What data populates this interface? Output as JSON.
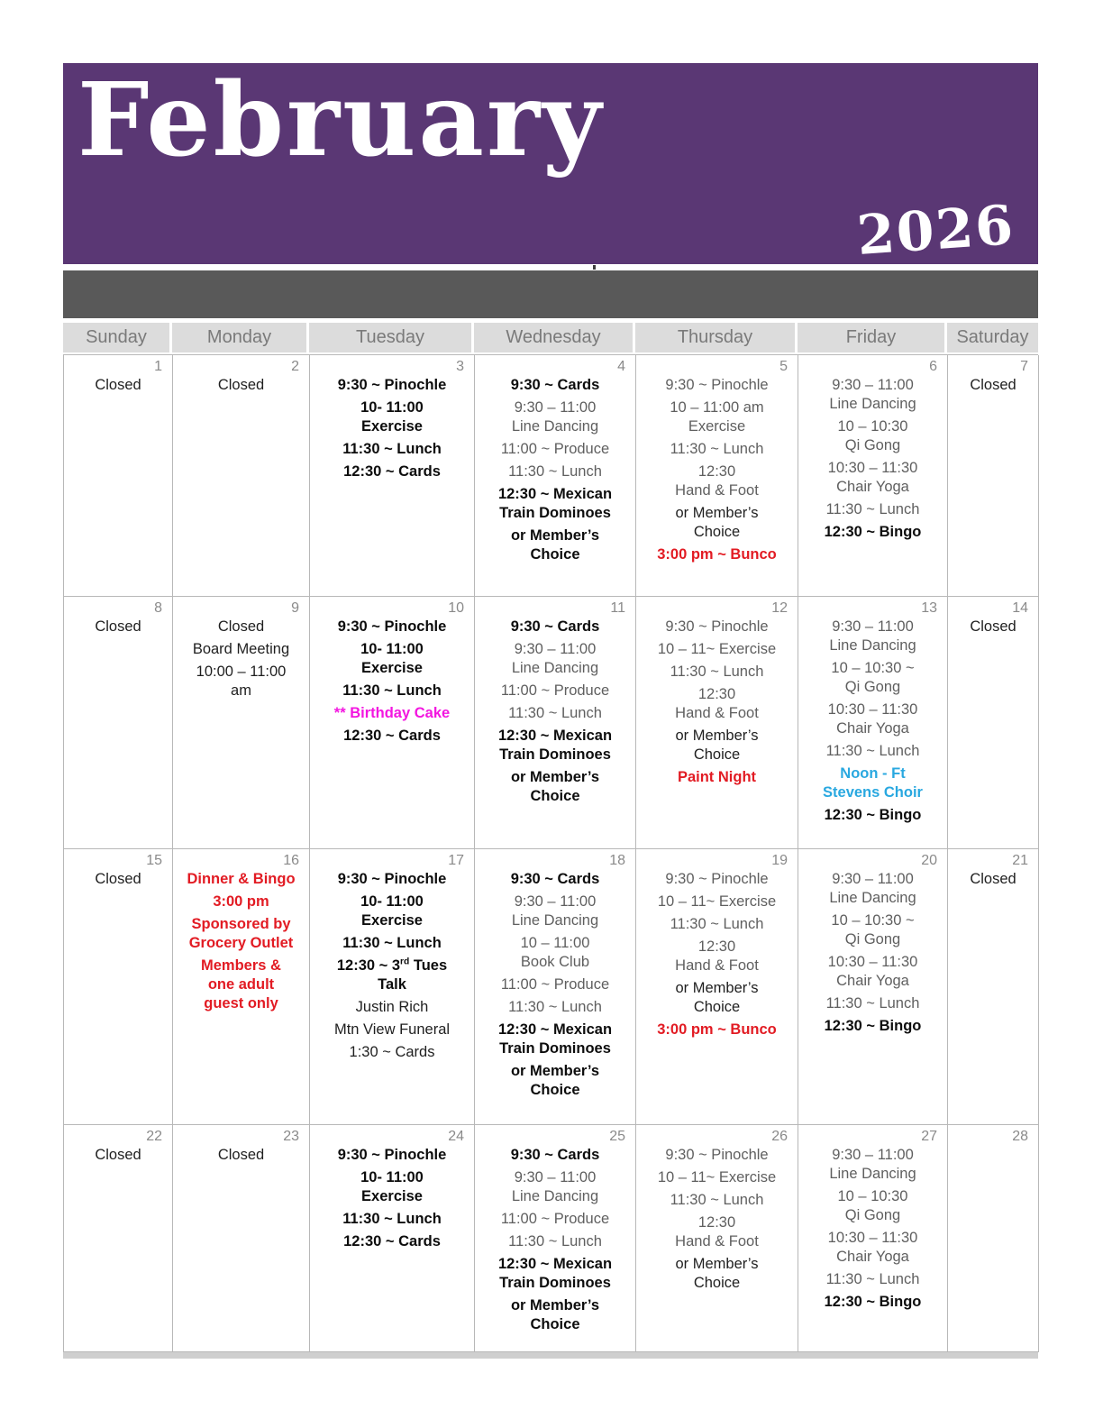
{
  "header": {
    "month": "February",
    "year": "2026"
  },
  "weekday_headers": [
    "Sunday",
    "Monday",
    "Tuesday",
    "Wednesday",
    "Thursday",
    "Friday",
    "Saturday"
  ],
  "colors": {
    "purple": "#5a3774",
    "bar_gray": "#595959",
    "red": "#e21b23",
    "magenta": "#f316e0",
    "blue": "#29a8e0",
    "graytext": "#5f5f5f"
  },
  "calendar": {
    "weeks": [
      [
        {
          "day": "1",
          "events": [
            {
              "style": "plain",
              "lines": [
                "Closed"
              ]
            }
          ]
        },
        {
          "day": "2",
          "events": [
            {
              "style": "plain",
              "lines": [
                "Closed"
              ]
            }
          ]
        },
        {
          "day": "3",
          "events": [
            {
              "style": "bold",
              "lines": [
                "9:30 ~ Pinochle"
              ]
            },
            {
              "style": "bold",
              "lines": [
                "10- 11:00",
                "Exercise"
              ]
            },
            {
              "style": "bold",
              "lines": [
                "11:30 ~ Lunch"
              ]
            },
            {
              "style": "bold",
              "lines": [
                "12:30 ~ Cards"
              ]
            }
          ]
        },
        {
          "day": "4",
          "events": [
            {
              "style": "bold",
              "lines": [
                "9:30 ~ Cards"
              ]
            },
            {
              "style": "gray",
              "lines": [
                "9:30 – 11:00",
                "Line Dancing"
              ]
            },
            {
              "style": "gray",
              "lines": [
                "11:00 ~ Produce"
              ]
            },
            {
              "style": "gray",
              "lines": [
                "11:30 ~ Lunch"
              ]
            },
            {
              "style": "bold",
              "lines": [
                "12:30 ~ Mexican",
                "Train Dominoes"
              ]
            },
            {
              "style": "bold",
              "lines": [
                "or Member’s",
                "Choice"
              ]
            }
          ]
        },
        {
          "day": "5",
          "events": [
            {
              "style": "gray",
              "lines": [
                "9:30 ~ Pinochle"
              ]
            },
            {
              "style": "gray",
              "lines": [
                "10 – 11:00 am",
                "Exercise"
              ]
            },
            {
              "style": "gray",
              "lines": [
                "11:30 ~ Lunch"
              ]
            },
            {
              "style": "gray",
              "lines": [
                "12:30",
                "Hand & Foot"
              ]
            },
            {
              "style": "plain",
              "lines": [
                "or Member’s",
                "Choice"
              ]
            },
            {
              "style": "red",
              "lines": [
                "3:00 pm ~ Bunco"
              ]
            }
          ]
        },
        {
          "day": "6",
          "events": [
            {
              "style": "gray",
              "lines": [
                "9:30 – 11:00",
                "Line Dancing"
              ]
            },
            {
              "style": "gray",
              "lines": [
                "10 – 10:30",
                "Qi Gong"
              ]
            },
            {
              "style": "gray",
              "lines": [
                "10:30 – 11:30",
                "Chair Yoga"
              ]
            },
            {
              "style": "gray",
              "lines": [
                "11:30 ~ Lunch"
              ]
            },
            {
              "style": "bold",
              "lines": [
                "12:30 ~ Bingo"
              ]
            }
          ]
        },
        {
          "day": "7",
          "events": [
            {
              "style": "plain",
              "lines": [
                "Closed"
              ]
            }
          ]
        }
      ],
      [
        {
          "day": "8",
          "events": [
            {
              "style": "plain",
              "lines": [
                "Closed"
              ]
            }
          ]
        },
        {
          "day": "9",
          "events": [
            {
              "style": "plain",
              "lines": [
                "Closed"
              ]
            },
            {
              "style": "plain",
              "lines": [
                "Board Meeting"
              ]
            },
            {
              "style": "plain",
              "lines": [
                "10:00 – 11:00",
                "am"
              ]
            }
          ]
        },
        {
          "day": "10",
          "events": [
            {
              "style": "bold",
              "lines": [
                "9:30 ~ Pinochle"
              ]
            },
            {
              "style": "bold",
              "lines": [
                "10- 11:00",
                "Exercise"
              ]
            },
            {
              "style": "bold",
              "lines": [
                "11:30 ~ Lunch"
              ]
            },
            {
              "style": "magenta",
              "lines": [
                "** Birthday Cake"
              ]
            },
            {
              "style": "bold",
              "lines": [
                "12:30 ~ Cards"
              ]
            }
          ]
        },
        {
          "day": "11",
          "events": [
            {
              "style": "bold",
              "lines": [
                "9:30 ~ Cards"
              ]
            },
            {
              "style": "gray",
              "lines": [
                "9:30 – 11:00",
                "Line Dancing"
              ]
            },
            {
              "style": "gray",
              "lines": [
                "11:00 ~ Produce"
              ]
            },
            {
              "style": "gray",
              "lines": [
                "11:30 ~ Lunch"
              ]
            },
            {
              "style": "bold",
              "lines": [
                "12:30 ~ Mexican",
                "Train Dominoes"
              ]
            },
            {
              "style": "bold",
              "lines": [
                "or Member’s",
                "Choice"
              ]
            }
          ]
        },
        {
          "day": "12",
          "events": [
            {
              "style": "gray",
              "lines": [
                "9:30 ~ Pinochle"
              ]
            },
            {
              "style": "gray",
              "lines": [
                "10 – 11~ Exercise"
              ]
            },
            {
              "style": "gray",
              "lines": [
                "11:30 ~ Lunch"
              ]
            },
            {
              "style": "gray",
              "lines": [
                "12:30",
                "Hand & Foot"
              ]
            },
            {
              "style": "plain",
              "lines": [
                "or Member’s",
                "Choice"
              ]
            },
            {
              "style": "red",
              "lines": [
                "Paint Night"
              ]
            }
          ]
        },
        {
          "day": "13",
          "events": [
            {
              "style": "gray",
              "lines": [
                "9:30 – 11:00",
                "Line Dancing"
              ]
            },
            {
              "style": "gray",
              "lines": [
                "10 – 10:30 ~",
                "Qi Gong"
              ]
            },
            {
              "style": "gray",
              "lines": [
                "10:30 – 11:30",
                "Chair Yoga"
              ]
            },
            {
              "style": "gray",
              "lines": [
                "11:30 ~ Lunch"
              ]
            },
            {
              "style": "blue",
              "lines": [
                "Noon - Ft",
                "Stevens Choir"
              ]
            },
            {
              "style": "bold",
              "lines": [
                "12:30 ~ Bingo"
              ]
            }
          ]
        },
        {
          "day": "14",
          "events": [
            {
              "style": "plain",
              "lines": [
                "Closed"
              ]
            }
          ]
        }
      ],
      [
        {
          "day": "15",
          "events": [
            {
              "style": "plain",
              "lines": [
                "Closed"
              ]
            }
          ]
        },
        {
          "day": "16",
          "events": [
            {
              "style": "red",
              "lines": [
                "Dinner & Bingo"
              ]
            },
            {
              "style": "red",
              "lines": [
                "3:00 pm"
              ]
            },
            {
              "style": "red",
              "lines": [
                "Sponsored by",
                "Grocery Outlet"
              ]
            },
            {
              "style": "red",
              "lines": [
                "Members &",
                "one adult",
                "guest only"
              ]
            }
          ]
        },
        {
          "day": "17",
          "events": [
            {
              "style": "bold",
              "lines": [
                "9:30 ~ Pinochle"
              ]
            },
            {
              "style": "bold",
              "lines": [
                "10- 11:00",
                "Exercise"
              ]
            },
            {
              "style": "bold",
              "lines": [
                "11:30 ~ Lunch"
              ]
            },
            {
              "style": "bold",
              "lines": [
                "12:30 ~ 3{rd} Tues",
                "Talk"
              ]
            },
            {
              "style": "plain",
              "lines": [
                "Justin Rich"
              ]
            },
            {
              "style": "plain",
              "lines": [
                "Mtn View Funeral"
              ]
            },
            {
              "style": "plain",
              "lines": [
                "1:30 ~ Cards"
              ]
            }
          ]
        },
        {
          "day": "18",
          "events": [
            {
              "style": "bold",
              "lines": [
                "9:30 ~ Cards"
              ]
            },
            {
              "style": "gray",
              "lines": [
                "9:30 – 11:00",
                "Line Dancing"
              ]
            },
            {
              "style": "gray",
              "lines": [
                "10 – 11:00",
                "Book Club"
              ]
            },
            {
              "style": "gray",
              "lines": [
                "11:00 ~ Produce"
              ]
            },
            {
              "style": "gray",
              "lines": [
                "11:30 ~ Lunch"
              ]
            },
            {
              "style": "bold",
              "lines": [
                "12:30 ~ Mexican",
                "Train Dominoes"
              ]
            },
            {
              "style": "bold",
              "lines": [
                "or Member’s",
                "Choice"
              ]
            }
          ]
        },
        {
          "day": "19",
          "events": [
            {
              "style": "gray",
              "lines": [
                "9:30 ~ Pinochle"
              ]
            },
            {
              "style": "gray",
              "lines": [
                "10 – 11~ Exercise"
              ]
            },
            {
              "style": "gray",
              "lines": [
                "11:30 ~ Lunch"
              ]
            },
            {
              "style": "gray",
              "lines": [
                "12:30",
                "Hand & Foot"
              ]
            },
            {
              "style": "plain",
              "lines": [
                "or Member’s",
                "Choice"
              ]
            },
            {
              "style": "red",
              "lines": [
                "3:00 pm ~ Bunco"
              ]
            }
          ]
        },
        {
          "day": "20",
          "events": [
            {
              "style": "gray",
              "lines": [
                "9:30 – 11:00",
                "Line Dancing"
              ]
            },
            {
              "style": "gray",
              "lines": [
                "10 – 10:30 ~",
                "Qi Gong"
              ]
            },
            {
              "style": "gray",
              "lines": [
                "10:30 – 11:30",
                "Chair Yoga"
              ]
            },
            {
              "style": "gray",
              "lines": [
                "11:30 ~ Lunch"
              ]
            },
            {
              "style": "bold",
              "lines": [
                "12:30 ~ Bingo"
              ]
            }
          ]
        },
        {
          "day": "21",
          "events": [
            {
              "style": "plain",
              "lines": [
                "Closed"
              ]
            }
          ]
        }
      ],
      [
        {
          "day": "22",
          "events": [
            {
              "style": "plain",
              "lines": [
                "Closed"
              ]
            }
          ]
        },
        {
          "day": "23",
          "events": [
            {
              "style": "plain",
              "lines": [
                "Closed"
              ]
            }
          ]
        },
        {
          "day": "24",
          "events": [
            {
              "style": "bold",
              "lines": [
                "9:30 ~ Pinochle"
              ]
            },
            {
              "style": "bold",
              "lines": [
                "10- 11:00",
                "Exercise"
              ]
            },
            {
              "style": "bold",
              "lines": [
                "11:30 ~ Lunch"
              ]
            },
            {
              "style": "bold",
              "lines": [
                "12:30 ~ Cards"
              ]
            }
          ]
        },
        {
          "day": "25",
          "events": [
            {
              "style": "bold",
              "lines": [
                "9:30 ~ Cards"
              ]
            },
            {
              "style": "gray",
              "lines": [
                "9:30 – 11:00",
                "Line Dancing"
              ]
            },
            {
              "style": "gray",
              "lines": [
                "11:00 ~ Produce"
              ]
            },
            {
              "style": "gray",
              "lines": [
                "11:30 ~ Lunch"
              ]
            },
            {
              "style": "bold",
              "lines": [
                "12:30 ~ Mexican",
                "Train Dominoes"
              ]
            },
            {
              "style": "bold",
              "lines": [
                "or Member’s",
                "Choice"
              ]
            }
          ]
        },
        {
          "day": "26",
          "events": [
            {
              "style": "gray",
              "lines": [
                "9:30 ~ Pinochle"
              ]
            },
            {
              "style": "gray",
              "lines": [
                "10 – 11~ Exercise"
              ]
            },
            {
              "style": "gray",
              "lines": [
                "11:30 ~ Lunch"
              ]
            },
            {
              "style": "gray",
              "lines": [
                "12:30",
                "Hand & Foot"
              ]
            },
            {
              "style": "plain",
              "lines": [
                "or Member’s",
                "Choice"
              ]
            }
          ]
        },
        {
          "day": "27",
          "events": [
            {
              "style": "gray",
              "lines": [
                "9:30 – 11:00",
                "Line Dancing"
              ]
            },
            {
              "style": "gray",
              "lines": [
                "10 – 10:30",
                "Qi Gong"
              ]
            },
            {
              "style": "gray",
              "lines": [
                "10:30 – 11:30",
                "Chair Yoga"
              ]
            },
            {
              "style": "gray",
              "lines": [
                "11:30 ~ Lunch"
              ]
            },
            {
              "style": "bold",
              "lines": [
                "12:30 ~ Bingo"
              ]
            }
          ]
        },
        {
          "day": "28",
          "events": []
        }
      ]
    ]
  }
}
